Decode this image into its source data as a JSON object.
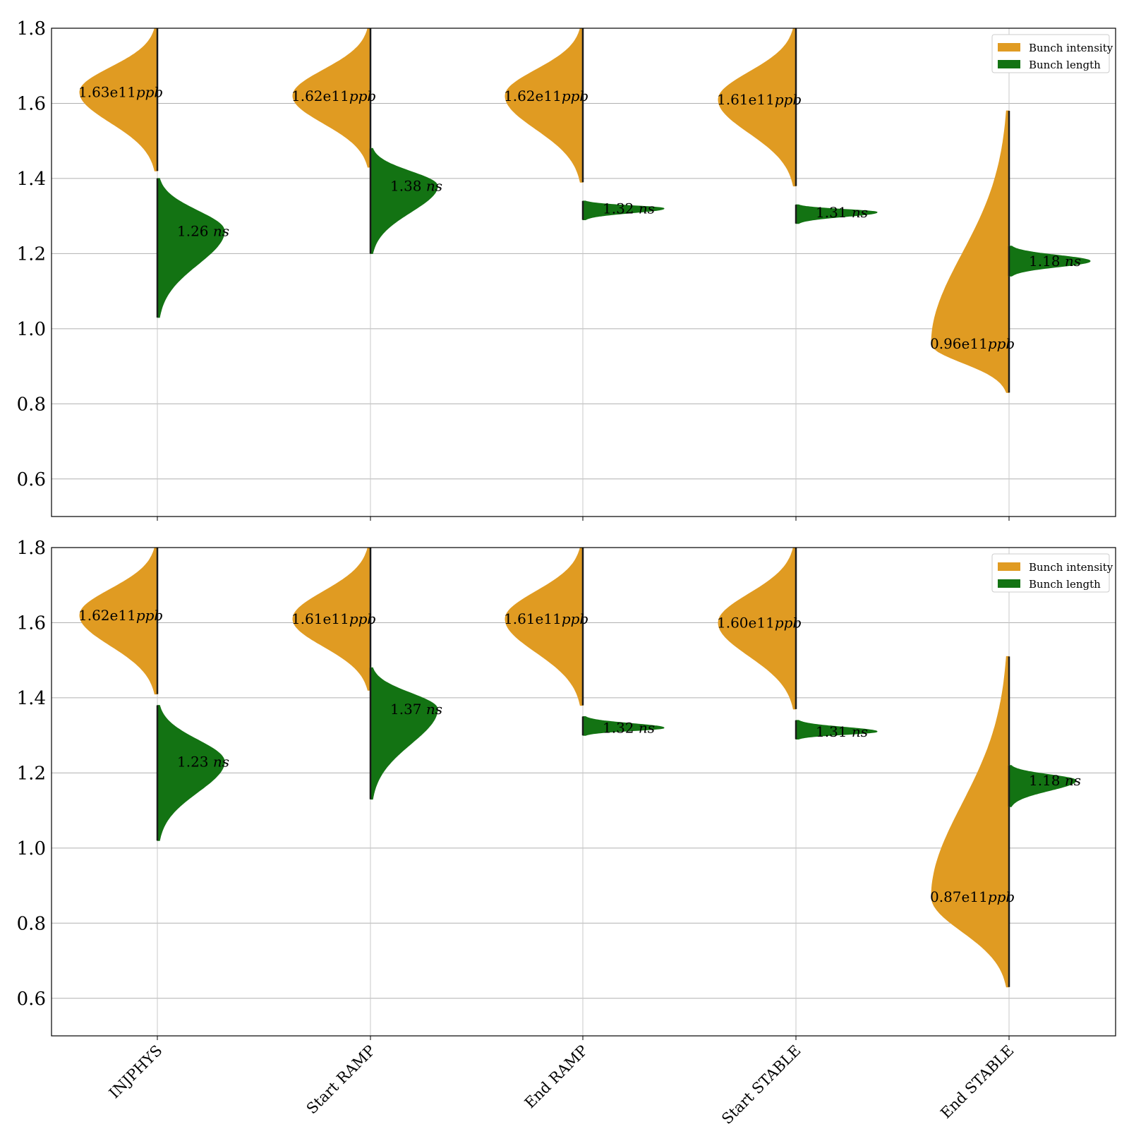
{
  "chart_data": [
    {
      "type": "violin",
      "categories": [
        "INJPHYS",
        "Start RAMP",
        "End RAMP",
        "Start STABLE",
        "End STABLE"
      ],
      "ylim": [
        0.5,
        1.8
      ],
      "yticks": [
        0.6,
        0.8,
        1.0,
        1.2,
        1.4,
        1.6,
        1.8
      ],
      "grid": true,
      "legend_position": "top-right",
      "legend": [
        {
          "label": "Bunch intensity",
          "color": "#E09B22"
        },
        {
          "label": "Bunch length",
          "color": "#137313"
        }
      ],
      "series": [
        {
          "name": "Bunch intensity",
          "color": "#E09B22",
          "side": "left",
          "unit": "ppb",
          "medians": [
            1.63,
            1.62,
            1.62,
            1.61,
            0.96
          ],
          "labels": [
            "1.63e11",
            "1.62e11",
            "1.62e11",
            "1.61e11",
            "0.96e11"
          ],
          "ranges": [
            [
              1.42,
              1.8
            ],
            [
              1.43,
              1.8
            ],
            [
              1.39,
              1.8
            ],
            [
              1.38,
              1.8
            ],
            [
              0.83,
              1.58
            ]
          ]
        },
        {
          "name": "Bunch length",
          "color": "#137313",
          "side": "right",
          "unit": "ns",
          "medians": [
            1.26,
            1.38,
            1.32,
            1.31,
            1.18
          ],
          "labels": [
            "1.26",
            "1.38",
            "1.32",
            "1.31",
            "1.18"
          ],
          "ranges": [
            [
              1.03,
              1.4
            ],
            [
              1.2,
              1.48
            ],
            [
              1.29,
              1.34
            ],
            [
              1.28,
              1.33
            ],
            [
              1.14,
              1.22
            ]
          ]
        }
      ]
    },
    {
      "type": "violin",
      "categories": [
        "INJPHYS",
        "Start RAMP",
        "End RAMP",
        "Start STABLE",
        "End STABLE"
      ],
      "ylim": [
        0.5,
        1.8
      ],
      "yticks": [
        0.6,
        0.8,
        1.0,
        1.2,
        1.4,
        1.6,
        1.8
      ],
      "grid": true,
      "legend_position": "top-right",
      "legend": [
        {
          "label": "Bunch intensity",
          "color": "#E09B22"
        },
        {
          "label": "Bunch length",
          "color": "#137313"
        }
      ],
      "series": [
        {
          "name": "Bunch intensity",
          "color": "#E09B22",
          "side": "left",
          "unit": "ppb",
          "medians": [
            1.62,
            1.61,
            1.61,
            1.6,
            0.87
          ],
          "labels": [
            "1.62e11",
            "1.61e11",
            "1.61e11",
            "1.60e11",
            "0.87e11"
          ],
          "ranges": [
            [
              1.41,
              1.8
            ],
            [
              1.42,
              1.8
            ],
            [
              1.38,
              1.8
            ],
            [
              1.37,
              1.8
            ],
            [
              0.63,
              1.51
            ]
          ]
        },
        {
          "name": "Bunch length",
          "color": "#137313",
          "side": "right",
          "unit": "ns",
          "medians": [
            1.23,
            1.37,
            1.32,
            1.31,
            1.18
          ],
          "labels": [
            "1.23",
            "1.37",
            "1.32",
            "1.31",
            "1.18"
          ],
          "ranges": [
            [
              1.02,
              1.38
            ],
            [
              1.13,
              1.48
            ],
            [
              1.3,
              1.35
            ],
            [
              1.29,
              1.34
            ],
            [
              1.11,
              1.22
            ]
          ]
        }
      ]
    }
  ]
}
